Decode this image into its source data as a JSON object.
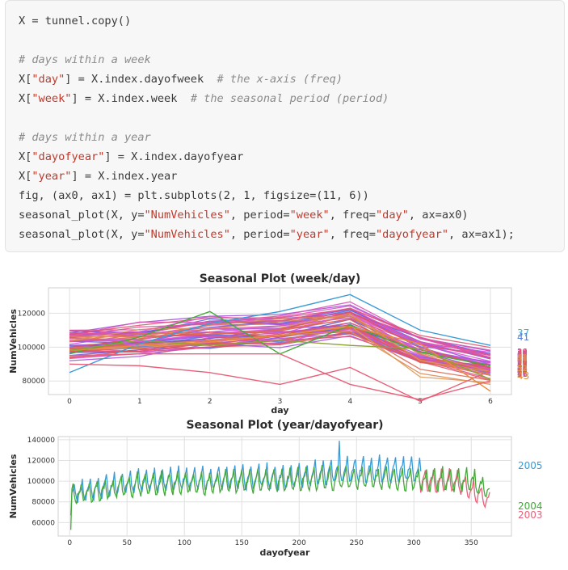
{
  "code": {
    "lines": [
      [
        {
          "t": "X = tunnel.copy()",
          "c": "plain"
        }
      ],
      [],
      [
        {
          "t": "# days within a week",
          "c": "com"
        }
      ],
      [
        {
          "t": "X[",
          "c": "plain"
        },
        {
          "t": "\"day\"",
          "c": "str"
        },
        {
          "t": "] = X.index.dayofweek  ",
          "c": "plain"
        },
        {
          "t": "# the x-axis (freq)",
          "c": "com"
        }
      ],
      [
        {
          "t": "X[",
          "c": "plain"
        },
        {
          "t": "\"week\"",
          "c": "str"
        },
        {
          "t": "] = X.index.week  ",
          "c": "plain"
        },
        {
          "t": "# the seasonal period (period)",
          "c": "com"
        }
      ],
      [],
      [
        {
          "t": "# days within a year",
          "c": "com"
        }
      ],
      [
        {
          "t": "X[",
          "c": "plain"
        },
        {
          "t": "\"dayofyear\"",
          "c": "str"
        },
        {
          "t": "] = X.index.dayofyear",
          "c": "plain"
        }
      ],
      [
        {
          "t": "X[",
          "c": "plain"
        },
        {
          "t": "\"year\"",
          "c": "str"
        },
        {
          "t": "] = X.index.year",
          "c": "plain"
        }
      ],
      [
        {
          "t": "fig, (ax0, ax1) = plt.subplots(2, 1, figsize=(11, 6))",
          "c": "plain"
        }
      ],
      [
        {
          "t": "seasonal_plot(X, y=",
          "c": "plain"
        },
        {
          "t": "\"NumVehicles\"",
          "c": "str"
        },
        {
          "t": ", period=",
          "c": "plain"
        },
        {
          "t": "\"week\"",
          "c": "str"
        },
        {
          "t": ", freq=",
          "c": "plain"
        },
        {
          "t": "\"day\"",
          "c": "str"
        },
        {
          "t": ", ax=ax0)",
          "c": "plain"
        }
      ],
      [
        {
          "t": "seasonal_plot(X, y=",
          "c": "plain"
        },
        {
          "t": "\"NumVehicles\"",
          "c": "str"
        },
        {
          "t": ", period=",
          "c": "plain"
        },
        {
          "t": "\"year\"",
          "c": "str"
        },
        {
          "t": ", freq=",
          "c": "plain"
        },
        {
          "t": "\"dayofyear\"",
          "c": "str"
        },
        {
          "t": ", ax=ax1);",
          "c": "plain"
        }
      ]
    ]
  },
  "colors": {
    "blue": "#3a9bd6",
    "green": "#45a83a",
    "red": "#e8617a",
    "grid": "#e0e0e0",
    "code_bg": "#f7f7f7"
  },
  "chart_data": [
    {
      "type": "line",
      "title": "Seasonal Plot (week/day)",
      "xlabel": "day",
      "ylabel": "NumVehicles",
      "xlim": [
        -0.3,
        6.3
      ],
      "ylim": [
        72000,
        135000
      ],
      "xticks": [
        0,
        1,
        2,
        3,
        4,
        5,
        6
      ],
      "yticks": [
        80000,
        100000,
        120000
      ],
      "ytick_labels": [
        "80000",
        "100000",
        "120000"
      ],
      "series_count": 53,
      "legend_visible": [
        "37",
        "41",
        "43"
      ],
      "highlighted_series": [
        {
          "name": "",
          "color": "#3a9bd6",
          "values": [
            85000,
            102000,
            114000,
            121000,
            131000,
            110000,
            101000
          ]
        },
        {
          "name": "",
          "color": "#45a83a",
          "values": [
            96000,
            106000,
            121000,
            96000,
            113000,
            97000,
            89000
          ]
        },
        {
          "name": "",
          "color": "#e8617a",
          "values": [
            90000,
            89000,
            85000,
            78000,
            88000,
            68000,
            86000
          ]
        },
        {
          "name": "",
          "color": "#e8617a",
          "values": [
            95000,
            96000,
            96000,
            96000,
            78000,
            69000,
            80000
          ]
        },
        {
          "name": "",
          "color": "#e88a3a",
          "values": [
            98000,
            101000,
            103000,
            107000,
            112000,
            102000,
            74000
          ]
        },
        {
          "name": "",
          "color": "#8da232",
          "values": [
            98000,
            104000,
            101000,
            104000,
            101000,
            99000,
            81000
          ]
        }
      ]
    },
    {
      "type": "line",
      "title": "Seasonal Plot (year/dayofyear)",
      "xlabel": "dayofyear",
      "ylabel": "NumVehicles",
      "xlim": [
        -10,
        385
      ],
      "ylim": [
        47000,
        143000
      ],
      "xticks": [
        0,
        50,
        100,
        150,
        200,
        250,
        300,
        350
      ],
      "yticks": [
        60000,
        80000,
        100000,
        120000,
        140000
      ],
      "ytick_labels": [
        "60000",
        "80000",
        "100000",
        "120000",
        "140000"
      ],
      "series": [
        {
          "name": "2005",
          "color": "#3a9bd6",
          "day_range": [
            1,
            306
          ],
          "start": 67000,
          "trend": [
            [
              1,
              88000
            ],
            [
              60,
              100000
            ],
            [
              130,
              102000
            ],
            [
              200,
              104000
            ],
            [
              240,
              110000
            ],
            [
              306,
              110000
            ]
          ]
        },
        {
          "name": "2004",
          "color": "#45a83a",
          "day_range": [
            1,
            366
          ],
          "start": 53000,
          "trend": [
            [
              1,
              86000
            ],
            [
              60,
              96000
            ],
            [
              130,
              98000
            ],
            [
              200,
              101000
            ],
            [
              260,
              102000
            ],
            [
              320,
              101000
            ],
            [
              350,
              100000
            ],
            [
              366,
              90000
            ]
          ]
        },
        {
          "name": "2003",
          "color": "#e8617a",
          "day_range": [
            305,
            366
          ],
          "start": 100000,
          "trend": [
            [
              305,
              100000
            ],
            [
              340,
              99000
            ],
            [
              366,
              80000
            ]
          ]
        }
      ]
    }
  ]
}
